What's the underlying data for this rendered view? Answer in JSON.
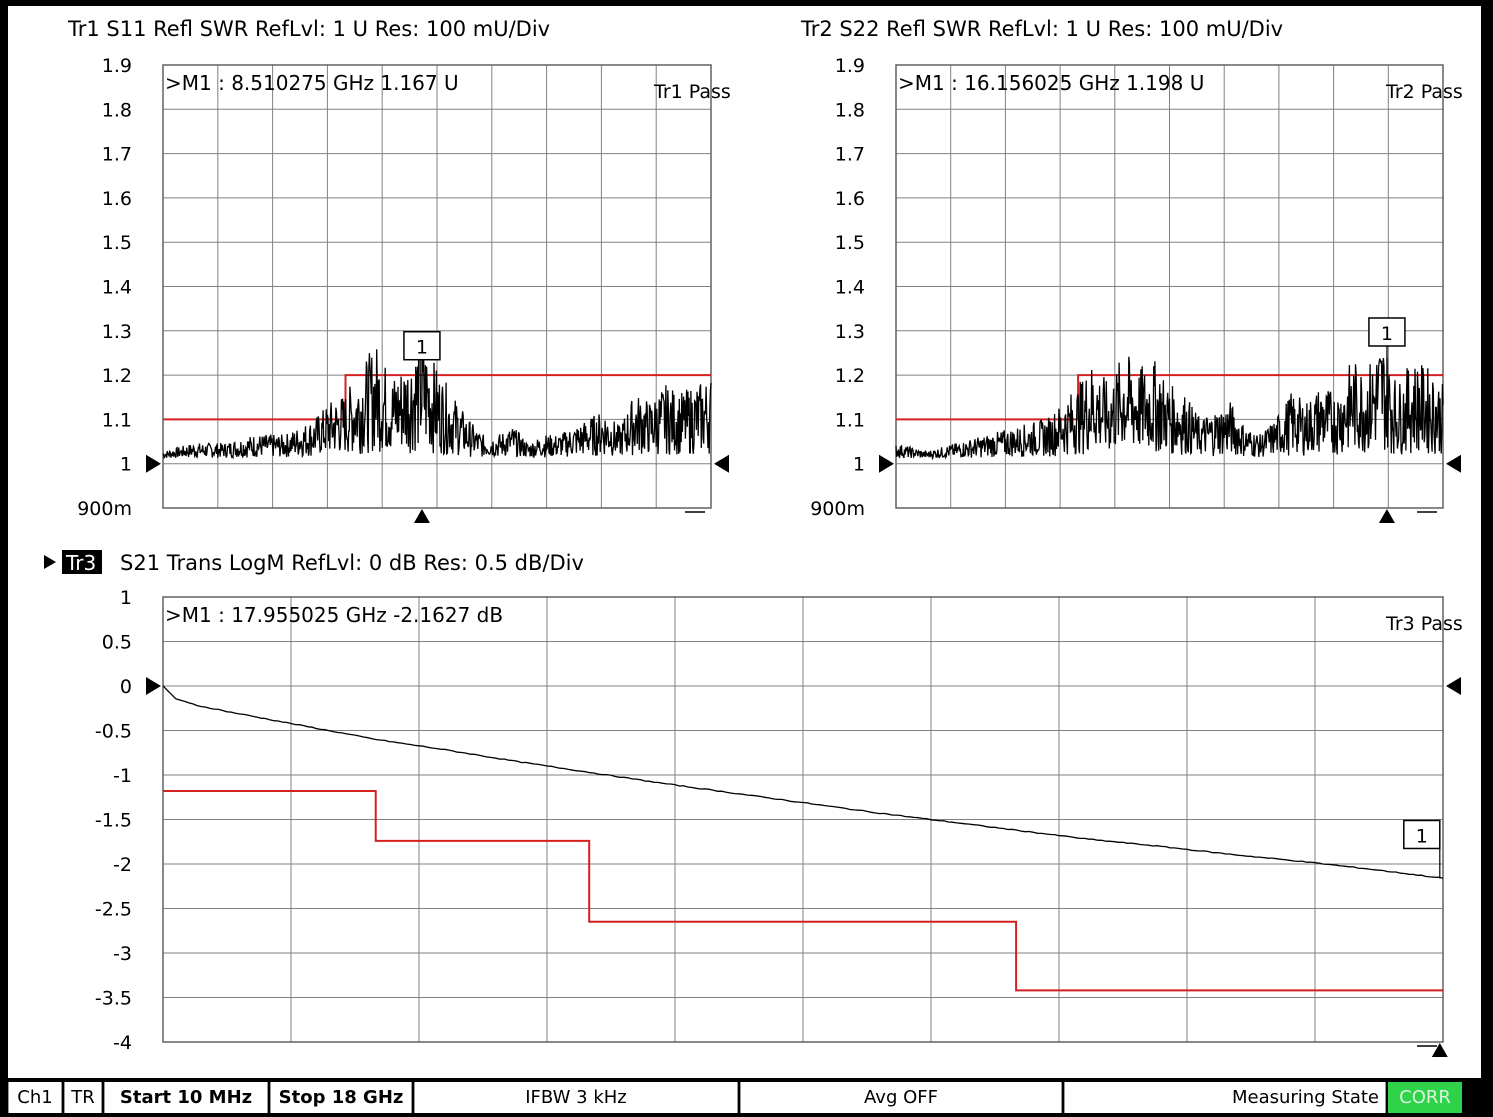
{
  "traces": [
    {
      "id": "tr1",
      "header": "Tr1  S11 Refl SWR RefLvl: 1  U Res: 100 mU/Div",
      "marker_readout": ">M1  :  8.510275 GHz  1.167  U",
      "pass_label": "Tr1 Pass",
      "marker_number": "1",
      "y_ticks": [
        "1.9",
        "1.8",
        "1.7",
        "1.6",
        "1.5",
        "1.4",
        "1.3",
        "1.2",
        "1.1",
        "1",
        "900m"
      ],
      "ref_arrow_label": "1"
    },
    {
      "id": "tr2",
      "header": "Tr2  S22 Refl SWR RefLvl: 1  U Res: 100 mU/Div",
      "marker_readout": ">M1  :  16.156025 GHz  1.198  U",
      "pass_label": "Tr2 Pass",
      "marker_number": "1",
      "y_ticks": [
        "1.9",
        "1.8",
        "1.7",
        "1.6",
        "1.5",
        "1.4",
        "1.3",
        "1.2",
        "1.1",
        "1",
        "900m"
      ]
    },
    {
      "id": "tr3",
      "active_tag": "Tr3",
      "header": "S21 Trans LogM RefLvl: 0  dB Res: 0.5  dB/Div",
      "marker_readout": ">M1  :  17.955025 GHz  -2.1627  dB",
      "pass_label": "Tr3 Pass",
      "marker_number": "1",
      "y_ticks": [
        "1",
        "0.5",
        "0",
        "-0.5",
        "-1",
        "-1.5",
        "-2",
        "-2.5",
        "-3",
        "-3.5",
        "-4"
      ]
    }
  ],
  "status_bar": {
    "channel": "Ch1",
    "mode": "TR",
    "start": "Start 10 MHz",
    "stop": "Stop 18 GHz",
    "ifbw": "IFBW 3 kHz",
    "avg": "Avg OFF",
    "state": "Measuring State",
    "corr": "CORR"
  },
  "colors": {
    "limit_line": "#d42020",
    "trace": "#000000",
    "grid": "#808080",
    "corr_badge": "#2fd34a"
  },
  "chart_data": [
    {
      "type": "line",
      "title": "Tr1  S11 Refl SWR RefLvl: 1  U Res: 100 mU/Div",
      "x_unit": "GHz",
      "xlim": [
        0.01,
        18
      ],
      "ylim": [
        0.9,
        1.9
      ],
      "marker": {
        "x": 8.510275,
        "y": 1.167
      },
      "limit_line": {
        "x": [
          0.01,
          6.0,
          6.0,
          18
        ],
        "y": [
          1.1,
          1.1,
          1.2,
          1.2
        ]
      },
      "trace": {
        "x": [
          0.01,
          1,
          2,
          3,
          4,
          5,
          5.5,
          6,
          6.5,
          7,
          7.5,
          8,
          8.5,
          9,
          9.5,
          10,
          10.5,
          11,
          11.5,
          12,
          12.5,
          13,
          13.5,
          14,
          14.5,
          15,
          15.5,
          16,
          16.5,
          17,
          17.5,
          18
        ],
        "y": [
          1.02,
          1.03,
          1.03,
          1.04,
          1.04,
          1.06,
          1.08,
          1.09,
          1.12,
          1.15,
          1.11,
          1.13,
          1.16,
          1.12,
          1.09,
          1.06,
          1.04,
          1.04,
          1.05,
          1.03,
          1.04,
          1.04,
          1.05,
          1.06,
          1.07,
          1.05,
          1.09,
          1.08,
          1.1,
          1.09,
          1.1,
          1.11
        ]
      }
    },
    {
      "type": "line",
      "title": "Tr2  S22 Refl SWR RefLvl: 1  U Res: 100 mU/Div",
      "x_unit": "GHz",
      "xlim": [
        0.01,
        18
      ],
      "ylim": [
        0.9,
        1.9
      ],
      "marker": {
        "x": 16.156025,
        "y": 1.198
      },
      "limit_line": {
        "x": [
          0.01,
          6.0,
          6.0,
          18
        ],
        "y": [
          1.1,
          1.1,
          1.2,
          1.2
        ]
      },
      "trace": {
        "x": [
          0.01,
          1,
          2,
          3,
          4,
          5,
          5.5,
          6,
          6.5,
          7,
          7.5,
          8,
          8.5,
          9,
          9.5,
          10,
          10.5,
          11,
          11.5,
          12,
          12.5,
          13,
          13.5,
          14,
          14.5,
          15,
          15.5,
          16,
          16.5,
          17,
          17.5,
          18
        ],
        "y": [
          1.03,
          1.02,
          1.03,
          1.04,
          1.05,
          1.06,
          1.08,
          1.1,
          1.13,
          1.1,
          1.14,
          1.12,
          1.13,
          1.1,
          1.09,
          1.06,
          1.07,
          1.08,
          1.05,
          1.04,
          1.06,
          1.09,
          1.08,
          1.1,
          1.09,
          1.13,
          1.12,
          1.16,
          1.1,
          1.13,
          1.12,
          1.1
        ]
      }
    },
    {
      "type": "line",
      "title": "S21 Trans LogM RefLvl: 0  dB Res: 0.5  dB/Div",
      "x_unit": "GHz",
      "xlim": [
        0.01,
        18
      ],
      "ylim": [
        -4,
        1
      ],
      "marker": {
        "x": 17.955025,
        "y": -2.1627
      },
      "limit_line": {
        "x": [
          0.01,
          3.0,
          3.0,
          6.0,
          6.0,
          12.0,
          12.0,
          18
        ],
        "y": [
          -1.18,
          -1.18,
          -1.74,
          -1.74,
          -2.65,
          -2.65,
          -3.42,
          -3.42
        ]
      },
      "trace": {
        "x": [
          0.01,
          0.2,
          0.5,
          1,
          2,
          3,
          4,
          5,
          6,
          7,
          8,
          9,
          10,
          11,
          12,
          13,
          14,
          15,
          16,
          17,
          18
        ],
        "y": [
          0,
          -0.15,
          -0.22,
          -0.3,
          -0.45,
          -0.6,
          -0.72,
          -0.85,
          -0.97,
          -1.09,
          -1.2,
          -1.31,
          -1.42,
          -1.52,
          -1.62,
          -1.72,
          -1.8,
          -1.89,
          -1.97,
          -2.06,
          -2.16
        ]
      }
    }
  ]
}
